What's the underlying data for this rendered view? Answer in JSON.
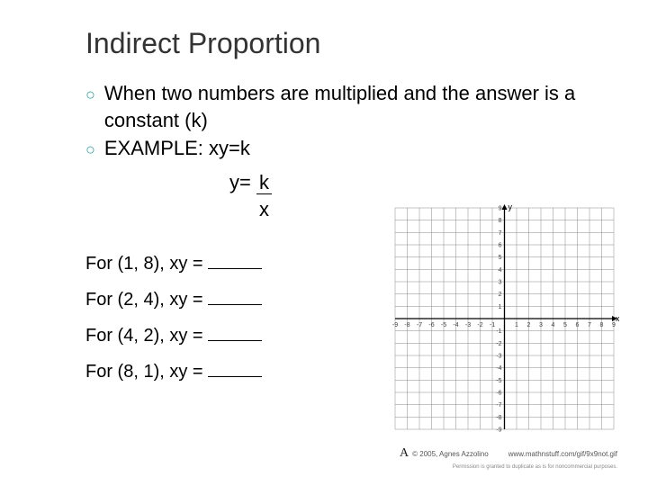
{
  "title": "Indirect Proportion",
  "bullets": [
    {
      "text": "When two numbers are multiplied and the answer is a constant (k)"
    },
    {
      "text": "EXAMPLE:  xy=k"
    }
  ],
  "equation": {
    "line1_prefix": "y=  ",
    "frac_num": "k",
    "frac_den": "x"
  },
  "for_lines": [
    {
      "pair": "For (1, 8), xy = "
    },
    {
      "pair": "For (2, 4), xy = "
    },
    {
      "pair": "For (4, 2), xy = "
    },
    {
      "pair": "For (8, 1), xy = "
    }
  ],
  "graph": {
    "xmin": -9,
    "xmax": 9,
    "ymin": -9,
    "ymax": 9,
    "x_ticks": [
      -9,
      -8,
      -7,
      -6,
      -5,
      -4,
      -3,
      -2,
      -1,
      1,
      2,
      3,
      4,
      5,
      6,
      7,
      8,
      9
    ],
    "y_ticks": [
      -9,
      -8,
      -7,
      -6,
      -5,
      -4,
      -3,
      -2,
      -1,
      1,
      2,
      3,
      4,
      5,
      6,
      7,
      8,
      9
    ],
    "grid_color": "#8a8a8a",
    "axis_color": "#000000",
    "background": "#ffffff",
    "tick_fontsize": 7,
    "tick_color": "#404040",
    "x_label": "x",
    "y_label": "y"
  },
  "credit": {
    "signature": "A",
    "copyright": "© 2005, Agnes Azzolino",
    "url": "www.mathnstuff.com/gif/9x9not.gif",
    "permission": "Permission is granted to duplicate as is for noncommercial purposes."
  },
  "colors": {
    "bullet_marker": "#2fa0a0",
    "title": "#333333",
    "text": "#000000",
    "bg": "#ffffff"
  }
}
